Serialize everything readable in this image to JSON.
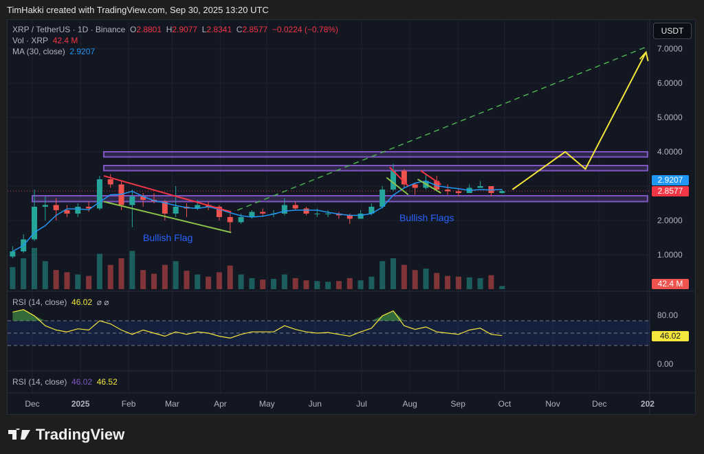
{
  "credit": "TimHakki created with TradingView.com, Sep 30, 2025 13:20 UTC",
  "legend": {
    "symbol": "XRP / TetherUS · 1D · Binance",
    "o_label": "O",
    "o": "2.8801",
    "h_label": "H",
    "h": "2.9077",
    "l_label": "L",
    "l": "2.8341",
    "c_label": "C",
    "c": "2.8577",
    "change": "−0.0224 (−0.78%)",
    "vol_label": "Vol · XRP",
    "vol": "42.4 M",
    "ma_label": "MA (30, close)",
    "ma": "2.9207",
    "rsi_label": "RSI (14, close)",
    "rsi": "46.02",
    "rsi_icons": "⌀ ⌀",
    "rsi2_label": "RSI (14, close)",
    "rsi2_a": "46.02",
    "rsi2_b": "46.52"
  },
  "currency_button": "USDT",
  "price_tags": {
    "ma": "2.9207",
    "last": "2.8577",
    "vol": "42.4 M",
    "rsi": "46.02"
  },
  "annotations": {
    "flag1": "Bullish Flag",
    "flag2": "Bullish Flags"
  },
  "logo_text": "TradingView",
  "colors": {
    "up": "#26a69a",
    "down": "#ef5350",
    "ma": "#2196f3",
    "rsi": "#f5e63b",
    "zone": "#7e57c2",
    "projection": "#f5e63b",
    "trend_dashed": "#4caf50"
  },
  "chart_data": {
    "type": "candlestick",
    "symbol": "XRP/USDT",
    "timeframe": "1D",
    "ylim": [
      0,
      7.0
    ],
    "y_ticks": [
      "7.0000",
      "6.0000",
      "5.0000",
      "4.0000",
      "2.0000",
      "1.0000"
    ],
    "x_ticks": [
      {
        "label": "Dec",
        "date": "2024-12-01"
      },
      {
        "label": "2025",
        "date": "2025-01-01",
        "bold": true
      },
      {
        "label": "Feb",
        "date": "2025-02-01"
      },
      {
        "label": "Mar",
        "date": "2025-03-01"
      },
      {
        "label": "Apr",
        "date": "2025-04-01"
      },
      {
        "label": "May",
        "date": "2025-05-01"
      },
      {
        "label": "Jun",
        "date": "2025-06-01"
      },
      {
        "label": "Jul",
        "date": "2025-07-01"
      },
      {
        "label": "Aug",
        "date": "2025-08-01"
      },
      {
        "label": "Sep",
        "date": "2025-09-01"
      },
      {
        "label": "Oct",
        "date": "2025-10-01"
      },
      {
        "label": "Nov",
        "date": "2025-11-01"
      },
      {
        "label": "Dec",
        "date": "2025-12-01"
      },
      {
        "label": "202",
        "date": "2026-01-01",
        "bold": true
      }
    ],
    "candles": [
      [
        "2024-11-17",
        0.95,
        1.25,
        0.9,
        1.1
      ],
      [
        "2024-11-24",
        1.1,
        1.6,
        1.05,
        1.45
      ],
      [
        "2024-12-01",
        1.45,
        2.9,
        1.4,
        2.4
      ],
      [
        "2024-12-08",
        2.4,
        2.7,
        2.0,
        2.45
      ],
      [
        "2024-12-15",
        2.45,
        2.65,
        2.0,
        2.3
      ],
      [
        "2024-12-22",
        2.3,
        2.45,
        2.1,
        2.2
      ],
      [
        "2024-12-29",
        2.2,
        2.5,
        2.1,
        2.4
      ],
      [
        "2025-01-05",
        2.4,
        2.55,
        2.25,
        2.35
      ],
      [
        "2025-01-12",
        2.35,
        3.3,
        2.3,
        3.2
      ],
      [
        "2025-01-19",
        3.2,
        3.35,
        2.95,
        3.05
      ],
      [
        "2025-01-26",
        3.05,
        3.15,
        2.3,
        2.45
      ],
      [
        "2025-02-02",
        2.45,
        2.9,
        1.8,
        2.7
      ],
      [
        "2025-02-09",
        2.7,
        2.8,
        2.4,
        2.6
      ],
      [
        "2025-02-16",
        2.6,
        2.8,
        2.5,
        2.55
      ],
      [
        "2025-02-23",
        2.55,
        2.6,
        2.0,
        2.2
      ],
      [
        "2025-03-02",
        2.2,
        3.0,
        2.1,
        2.4
      ],
      [
        "2025-03-09",
        2.4,
        2.5,
        2.1,
        2.35
      ],
      [
        "2025-03-16",
        2.35,
        2.6,
        2.3,
        2.45
      ],
      [
        "2025-03-23",
        2.45,
        2.55,
        2.3,
        2.4
      ],
      [
        "2025-03-30",
        2.4,
        2.45,
        2.0,
        2.1
      ],
      [
        "2025-04-06",
        2.1,
        2.2,
        1.65,
        1.95
      ],
      [
        "2025-04-13",
        1.95,
        2.2,
        1.9,
        2.1
      ],
      [
        "2025-04-20",
        2.1,
        2.3,
        2.05,
        2.25
      ],
      [
        "2025-04-27",
        2.25,
        2.35,
        2.1,
        2.2
      ],
      [
        "2025-05-04",
        2.2,
        2.3,
        2.1,
        2.2
      ],
      [
        "2025-05-11",
        2.2,
        2.65,
        2.15,
        2.45
      ],
      [
        "2025-05-18",
        2.45,
        2.55,
        2.3,
        2.35
      ],
      [
        "2025-05-25",
        2.35,
        2.4,
        2.15,
        2.2
      ],
      [
        "2025-06-01",
        2.2,
        2.35,
        2.1,
        2.2
      ],
      [
        "2025-06-08",
        2.2,
        2.3,
        2.1,
        2.2
      ],
      [
        "2025-06-15",
        2.2,
        2.25,
        2.05,
        2.15
      ],
      [
        "2025-06-22",
        2.15,
        2.2,
        1.9,
        2.05
      ],
      [
        "2025-06-29",
        2.05,
        2.3,
        2.05,
        2.2
      ],
      [
        "2025-07-06",
        2.2,
        2.5,
        2.15,
        2.4
      ],
      [
        "2025-07-13",
        2.4,
        3.0,
        2.35,
        2.9
      ],
      [
        "2025-07-20",
        2.9,
        3.65,
        2.85,
        3.45
      ],
      [
        "2025-07-27",
        3.45,
        3.5,
        2.95,
        3.05
      ],
      [
        "2025-08-03",
        3.05,
        3.1,
        2.75,
        2.95
      ],
      [
        "2025-08-10",
        2.95,
        3.35,
        2.9,
        3.15
      ],
      [
        "2025-08-17",
        3.15,
        3.3,
        2.85,
        2.9
      ],
      [
        "2025-08-24",
        2.9,
        3.05,
        2.75,
        2.85
      ],
      [
        "2025-08-31",
        2.85,
        2.95,
        2.7,
        2.8
      ],
      [
        "2025-09-07",
        2.8,
        3.05,
        2.8,
        2.95
      ],
      [
        "2025-09-14",
        2.95,
        3.15,
        2.95,
        3.0
      ],
      [
        "2025-09-21",
        3.0,
        3.0,
        2.7,
        2.8
      ],
      [
        "2025-09-28",
        2.8,
        2.91,
        2.78,
        2.8577
      ]
    ],
    "volume_m": [
      300,
      420,
      560,
      380,
      260,
      230,
      200,
      180,
      480,
      330,
      420,
      520,
      260,
      210,
      330,
      380,
      250,
      200,
      170,
      230,
      320,
      200,
      150,
      130,
      140,
      200,
      150,
      120,
      110,
      100,
      110,
      150,
      120,
      170,
      380,
      420,
      330,
      260,
      280,
      220,
      180,
      170,
      160,
      150,
      190,
      42.4
    ],
    "rsi": [
      84,
      88,
      78,
      62,
      55,
      52,
      57,
      55,
      70,
      65,
      55,
      48,
      55,
      50,
      45,
      52,
      48,
      52,
      50,
      45,
      42,
      48,
      52,
      52,
      52,
      62,
      56,
      52,
      50,
      51,
      48,
      45,
      52,
      58,
      78,
      86,
      62,
      56,
      60,
      52,
      50,
      48,
      55,
      58,
      48,
      46.02
    ],
    "rsi_levels": [
      70,
      50,
      30
    ],
    "rsi_ticks": [
      "80.00",
      "0.00"
    ],
    "zones": [
      {
        "from": "2025-01-16",
        "to": "2026-01-01",
        "low": 3.85,
        "high": 4.0
      },
      {
        "from": "2025-01-16",
        "to": "2026-01-01",
        "low": 3.45,
        "high": 3.6
      },
      {
        "from": "2024-12-01",
        "to": "2026-01-01",
        "low": 2.55,
        "high": 2.72
      }
    ],
    "trendlines": [
      {
        "color": "#f23645",
        "points": [
          [
            "2025-01-16",
            3.3
          ],
          [
            "2025-04-08",
            2.25
          ]
        ]
      },
      {
        "color": "#8bc34a",
        "points": [
          [
            "2025-01-16",
            2.55
          ],
          [
            "2025-04-08",
            1.65
          ]
        ]
      },
      {
        "color": "#f23645",
        "points": [
          [
            "2025-07-19",
            3.55
          ],
          [
            "2025-07-31",
            3.0
          ]
        ]
      },
      {
        "color": "#8bc34a",
        "points": [
          [
            "2025-07-17",
            3.25
          ],
          [
            "2025-07-31",
            2.75
          ]
        ]
      },
      {
        "color": "#f23645",
        "points": [
          [
            "2025-08-08",
            3.45
          ],
          [
            "2025-08-21",
            3.05
          ]
        ]
      },
      {
        "color": "#8bc34a",
        "points": [
          [
            "2025-08-06",
            3.2
          ],
          [
            "2025-08-21",
            2.8
          ]
        ]
      }
    ],
    "dashed_trend": [
      [
        "2025-04-12",
        2.3
      ],
      [
        "2025-12-31",
        7.05
      ]
    ],
    "projection": [
      [
        "2025-10-06",
        2.9
      ],
      [
        "2025-11-09",
        4.0
      ],
      [
        "2025-11-22",
        3.5
      ],
      [
        "2025-12-31",
        6.9
      ]
    ]
  }
}
